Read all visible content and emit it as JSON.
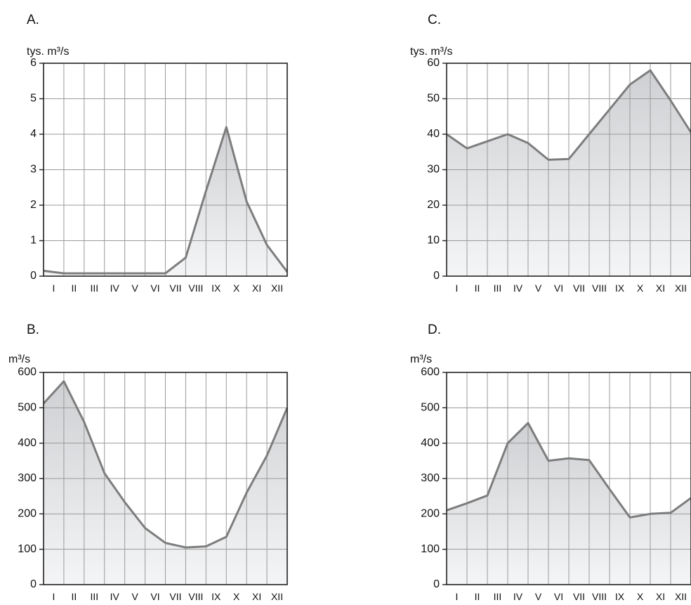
{
  "colors": {
    "line": "#7d7d7d",
    "fill_top": "#cfd0d3",
    "fill_bottom": "#f4f5f6",
    "grid": "#9a9a9a",
    "frame": "#222222"
  },
  "chart_data": [
    {
      "type": "area",
      "title": "A.",
      "ylabel": "tys. m³/s",
      "categories": [
        "I",
        "II",
        "III",
        "IV",
        "V",
        "VI",
        "VII",
        "VIII",
        "IX",
        "X",
        "XI",
        "XII"
      ],
      "ylim": [
        0,
        6
      ],
      "yticks": [
        0,
        1,
        2,
        3,
        4,
        5,
        6
      ],
      "x": [
        0,
        1,
        2,
        3,
        4,
        5,
        6,
        7,
        8,
        9,
        10,
        11,
        12
      ],
      "values": [
        0.15,
        0.08,
        0.08,
        0.08,
        0.08,
        0.08,
        0.08,
        0.52,
        2.4,
        4.2,
        2.1,
        0.88,
        0.12
      ],
      "grid": true,
      "legend": "none"
    },
    {
      "type": "area",
      "title": "C.",
      "ylabel": "tys. m³/s",
      "categories": [
        "I",
        "II",
        "III",
        "IV",
        "V",
        "VI",
        "VII",
        "VIII",
        "IX",
        "X",
        "XI",
        "XII"
      ],
      "ylim": [
        0,
        60
      ],
      "yticks": [
        0,
        10,
        20,
        30,
        40,
        50,
        60
      ],
      "x": [
        0,
        1,
        2,
        3,
        4,
        5,
        6,
        7,
        8,
        9,
        10,
        11,
        12
      ],
      "values": [
        40,
        36,
        38,
        40,
        37.5,
        32.8,
        33,
        40,
        47,
        54,
        58,
        49.5,
        40.5
      ],
      "grid": true,
      "legend": "none"
    },
    {
      "type": "area",
      "title": "B.",
      "ylabel": "m³/s",
      "categories": [
        "I",
        "II",
        "III",
        "IV",
        "V",
        "VI",
        "VII",
        "VIII",
        "IX",
        "X",
        "XI",
        "XII"
      ],
      "ylim": [
        0,
        600
      ],
      "yticks": [
        0,
        100,
        200,
        300,
        400,
        500,
        600
      ],
      "x": [
        0,
        1,
        2,
        3,
        4,
        5,
        6,
        7,
        8,
        9,
        10,
        11,
        12
      ],
      "values": [
        512,
        575,
        460,
        315,
        233,
        160,
        118,
        105,
        108,
        135,
        260,
        365,
        500
      ],
      "grid": true,
      "legend": "none"
    },
    {
      "type": "area",
      "title": "D.",
      "ylabel": "m³/s",
      "categories": [
        "I",
        "II",
        "III",
        "IV",
        "V",
        "VI",
        "VII",
        "VIII",
        "IX",
        "X",
        "XI",
        "XII"
      ],
      "ylim": [
        0,
        600
      ],
      "yticks": [
        0,
        100,
        200,
        300,
        400,
        500,
        600
      ],
      "x": [
        0,
        1,
        2,
        3,
        4,
        5,
        6,
        7,
        8,
        9,
        10,
        11,
        12
      ],
      "values": [
        210,
        230,
        252,
        400,
        457,
        350,
        357,
        352,
        270,
        190,
        200,
        203,
        245
      ],
      "grid": true,
      "legend": "none"
    }
  ]
}
